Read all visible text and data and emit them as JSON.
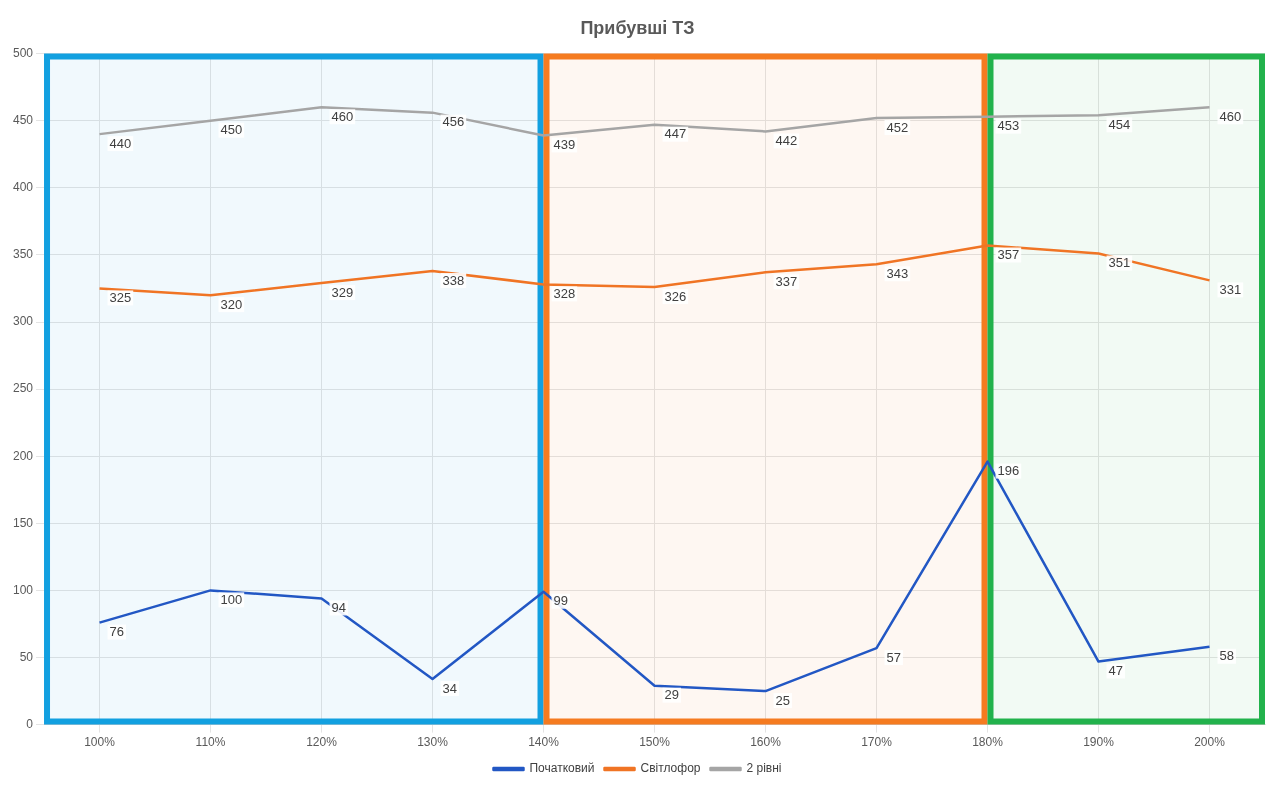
{
  "chart_data": {
    "type": "line",
    "title": "Прибувші ТЗ",
    "categories": [
      "100%",
      "110%",
      "120%",
      "130%",
      "140%",
      "150%",
      "160%",
      "170%",
      "180%",
      "190%",
      "200%"
    ],
    "series": [
      {
        "name": "Початковий",
        "color": "#2257c4",
        "values": [
          76,
          100,
          94,
          34,
          99,
          29,
          25,
          57,
          196,
          47,
          58
        ]
      },
      {
        "name": "Світлофор",
        "color": "#f07424",
        "values": [
          325,
          320,
          329,
          338,
          328,
          326,
          337,
          343,
          357,
          351,
          331
        ]
      },
      {
        "name": "2 рівні",
        "color": "#a5a5a5",
        "values": [
          440,
          450,
          460,
          456,
          439,
          447,
          442,
          452,
          453,
          454,
          460
        ]
      }
    ],
    "ylim": [
      0,
      500
    ],
    "yticks": [
      0,
      50,
      100,
      150,
      200,
      250,
      300,
      350,
      400,
      450,
      500
    ],
    "grid": true,
    "legend": "bottom",
    "data_labels": true,
    "marker": "none",
    "line_style": "solid",
    "bands": [
      {
        "axis": "x",
        "from": "100%",
        "to": "140%",
        "color": "#12a0e0"
      },
      {
        "axis": "x",
        "from": "140%",
        "to": "180%",
        "color": "#f57b20"
      },
      {
        "axis": "x",
        "from": "180%",
        "to": "200%",
        "color": "#22b24c"
      }
    ]
  }
}
